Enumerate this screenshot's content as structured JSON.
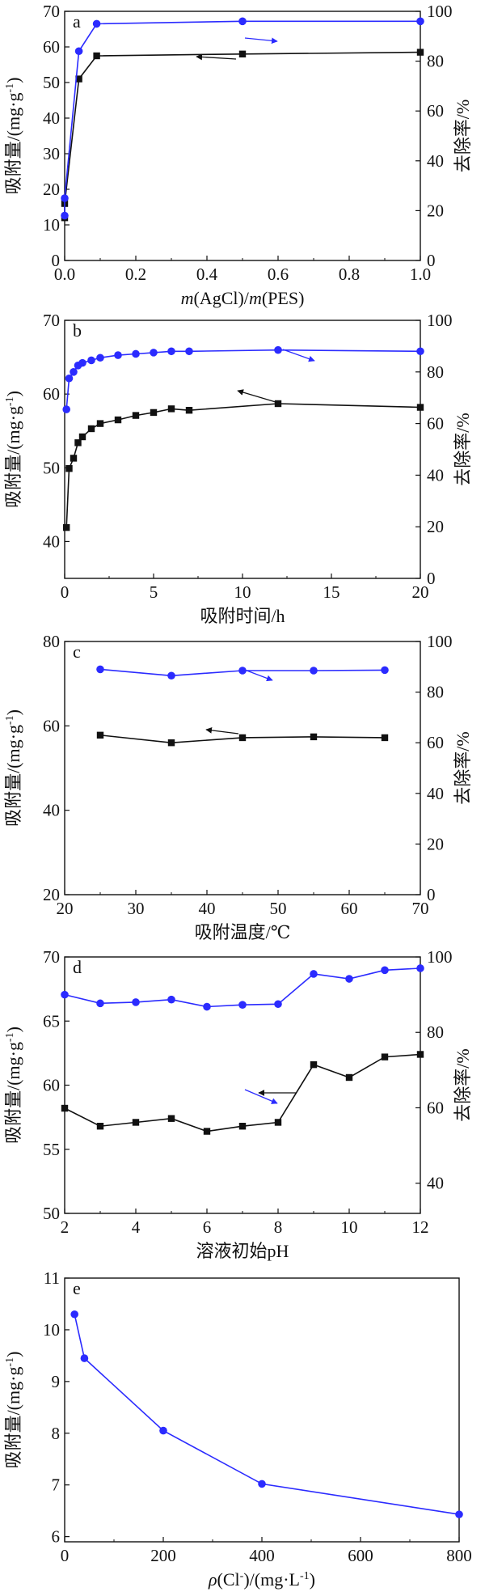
{
  "chart_data": [
    {
      "type": "line",
      "panel_label": "a",
      "xlabel_prefix": "m",
      "xlabel_mid": "(AgCl)/",
      "xlabel_mid2": "m",
      "xlabel_suffix": "(PES)",
      "ylabel": "吸附量/(mg·g",
      "ylabel_sup": "-1",
      "ylabel_close": ")",
      "y2label": "去除率/%",
      "xlim": [
        0,
        1.0
      ],
      "ylim": [
        0,
        70
      ],
      "y2lim": [
        0,
        100
      ],
      "x_ticks": [
        "0.0",
        "0.2",
        "0.4",
        "0.6",
        "0.8",
        "1.0"
      ],
      "x_tick_values": [
        0,
        0.2,
        0.4,
        0.6,
        0.8,
        1.0
      ],
      "y_ticks": [
        0,
        10,
        20,
        30,
        40,
        50,
        60,
        70
      ],
      "y2_ticks": [
        0,
        20,
        40,
        60,
        80,
        100
      ],
      "series": [
        {
          "axis": "left",
          "color": "#111111",
          "marker": "square",
          "x": [
            0.0,
            0.0,
            0.04,
            0.09,
            0.5,
            1.0
          ],
          "values": [
            12,
            16,
            51,
            57.5,
            58,
            58.5
          ]
        },
        {
          "axis": "right",
          "color": "#2b2bff",
          "marker": "circle",
          "x": [
            0.0,
            0.0,
            0.04,
            0.09,
            0.5,
            1.0
          ],
          "values": [
            18,
            25,
            84,
            95,
            96,
            96
          ]
        }
      ]
    },
    {
      "type": "line",
      "panel_label": "b",
      "xlabel": "吸附时间/h",
      "ylabel": "吸附量/(mg·g",
      "ylabel_sup": "-1",
      "ylabel_close": ")",
      "y2label": "去除率/%",
      "xlim": [
        0,
        20
      ],
      "ylim": [
        35,
        70
      ],
      "y2lim": [
        0,
        100
      ],
      "x_ticks": [
        "0",
        "5",
        "10",
        "15",
        "20"
      ],
      "x_tick_values": [
        0,
        5,
        10,
        15,
        20
      ],
      "y_ticks": [
        40,
        50,
        60,
        70
      ],
      "y2_ticks": [
        0,
        20,
        40,
        60,
        80,
        100
      ],
      "series": [
        {
          "axis": "left",
          "color": "#111111",
          "marker": "square",
          "x": [
            0.1,
            0.25,
            0.5,
            0.75,
            1.0,
            1.5,
            2,
            3,
            4,
            5,
            6,
            7,
            12,
            20
          ],
          "values": [
            41.9,
            49.9,
            51.3,
            53.4,
            54.2,
            55.3,
            56.0,
            56.5,
            57.1,
            57.5,
            58.0,
            57.8,
            58.7,
            58.2
          ]
        },
        {
          "axis": "right",
          "color": "#2b2bff",
          "marker": "circle",
          "x": [
            0.1,
            0.25,
            0.5,
            0.75,
            1.0,
            1.5,
            2,
            3,
            4,
            5,
            6,
            7,
            12,
            20
          ],
          "values": [
            65.5,
            77.5,
            80.0,
            82.5,
            83.5,
            84.5,
            85.5,
            86.5,
            87.0,
            87.5,
            88.0,
            88.0,
            88.5,
            88.0
          ]
        }
      ]
    },
    {
      "type": "line",
      "panel_label": "c",
      "xlabel": "吸附温度/℃",
      "ylabel": "吸附量/(mg·g",
      "ylabel_sup": "-1",
      "ylabel_close": ")",
      "y2label": "去除率/%",
      "xlim": [
        20,
        70
      ],
      "ylim": [
        20,
        80
      ],
      "y2lim": [
        0,
        100
      ],
      "x_ticks": [
        "20",
        "30",
        "40",
        "50",
        "60",
        "70"
      ],
      "x_tick_values": [
        20,
        30,
        40,
        50,
        60,
        70
      ],
      "y_ticks": [
        20,
        40,
        60,
        80
      ],
      "y2_ticks": [
        0,
        20,
        40,
        60,
        80,
        100
      ],
      "series": [
        {
          "axis": "left",
          "color": "#111111",
          "marker": "square",
          "x": [
            25,
            35,
            45,
            55,
            65
          ],
          "values": [
            57.8,
            56.0,
            57.2,
            57.4,
            57.2
          ]
        },
        {
          "axis": "right",
          "color": "#2b2bff",
          "marker": "circle",
          "x": [
            25,
            35,
            45,
            55,
            65
          ],
          "values": [
            89.0,
            86.5,
            88.5,
            88.5,
            88.7
          ]
        }
      ]
    },
    {
      "type": "line",
      "panel_label": "d",
      "xlabel": "溶液初始pH",
      "ylabel": "吸附量/(mg·g",
      "ylabel_sup": "-1",
      "ylabel_close": ")",
      "y2label": "去除率/%",
      "xlim": [
        2,
        12
      ],
      "ylim": [
        50,
        70
      ],
      "y2lim": [
        32,
        100
      ],
      "x_ticks": [
        "2",
        "4",
        "6",
        "8",
        "10",
        "12"
      ],
      "x_tick_values": [
        2,
        4,
        6,
        8,
        10,
        12
      ],
      "y_ticks": [
        50,
        55,
        60,
        65,
        70
      ],
      "y2_ticks": [
        40,
        60,
        80,
        100
      ],
      "series": [
        {
          "axis": "left",
          "color": "#111111",
          "marker": "square",
          "x": [
            2,
            3,
            4,
            5,
            6,
            7,
            8,
            9,
            10,
            11,
            12
          ],
          "values": [
            58.2,
            56.8,
            57.1,
            57.4,
            56.4,
            56.8,
            57.1,
            61.6,
            60.6,
            62.2,
            62.4
          ]
        },
        {
          "axis": "right",
          "color": "#2b2bff",
          "marker": "circle",
          "x": [
            2,
            3,
            4,
            5,
            6,
            7,
            8,
            9,
            10,
            11,
            12
          ],
          "values": [
            90.0,
            87.7,
            88.0,
            88.7,
            86.8,
            87.3,
            87.5,
            95.5,
            94.2,
            96.5,
            97.0
          ]
        }
      ]
    },
    {
      "type": "line",
      "panel_label": "e",
      "xlabel_prefix": "ρ",
      "xlabel_mid": "(Cl",
      "xlabel_sup": "-",
      "xlabel_suffix": ")/(mg·L",
      "xlabel_sup2": "-1",
      "xlabel_close": ")",
      "ylabel": "吸附量/(mg·g",
      "ylabel_sup": "-1",
      "ylabel_close": ")",
      "xlim": [
        0,
        800
      ],
      "ylim": [
        5.9,
        11
      ],
      "x_ticks": [
        "0",
        "200",
        "400",
        "600",
        "800"
      ],
      "x_tick_values": [
        0,
        200,
        400,
        600,
        800
      ],
      "y_ticks": [
        6,
        7,
        8,
        9,
        10,
        11
      ],
      "series": [
        {
          "axis": "left",
          "color": "#2b2bff",
          "marker": "circle",
          "x": [
            20,
            40,
            200,
            400,
            800
          ],
          "values": [
            10.3,
            9.45,
            8.05,
            7.02,
            6.43
          ]
        }
      ]
    }
  ]
}
